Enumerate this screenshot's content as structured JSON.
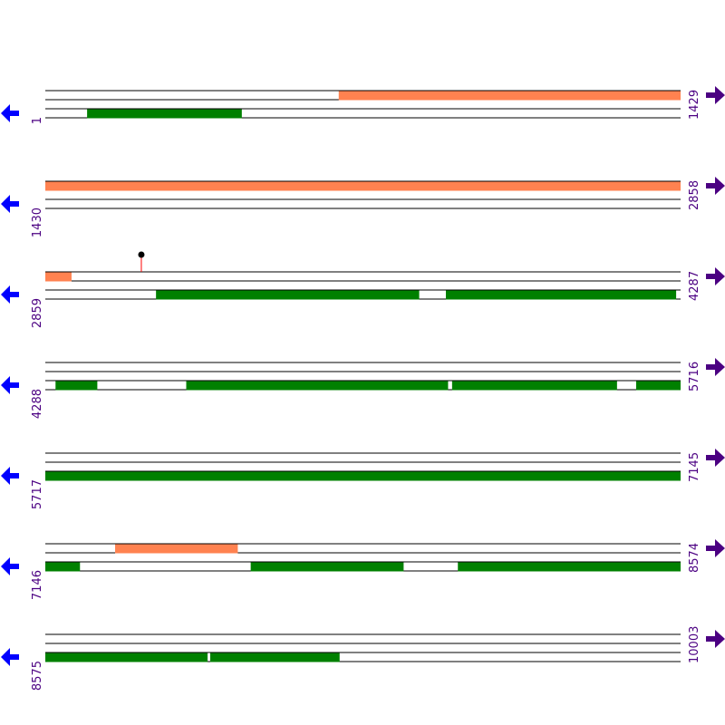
{
  "colors": {
    "forward_feature": "#ff8250",
    "reverse_feature": "#008000",
    "track_line": "#000000",
    "coord_text": "#4b0082",
    "left_arrow": "#0000ff",
    "right_arrow": "#4b0082",
    "marker_stem": "#ff0000",
    "marker_head": "#000000"
  },
  "icons": {
    "left": "arrow-left-icon",
    "right": "arrow-right-icon"
  },
  "rows": [
    {
      "start": "1",
      "end": "1429",
      "start_bp": 1,
      "end_bp": 1429,
      "tracks": 3,
      "features": [
        {
          "track": 0,
          "start": 661,
          "end": 1429,
          "kind": "forward"
        },
        {
          "track": 2,
          "start": 95,
          "end": 442,
          "kind": "reverse"
        }
      ],
      "markers": []
    },
    {
      "start": "1430",
      "end": "2858",
      "start_bp": 1430,
      "end_bp": 2858,
      "tracks": 3,
      "features": [
        {
          "track": 0,
          "start": 1430,
          "end": 2858,
          "kind": "forward"
        }
      ],
      "markers": []
    },
    {
      "start": "2859",
      "end": "4287",
      "start_bp": 2859,
      "end_bp": 4287,
      "tracks": 3,
      "features": [
        {
          "track": 0,
          "start": 2859,
          "end": 2917,
          "kind": "forward"
        },
        {
          "track": 2,
          "start": 3108,
          "end": 3699,
          "kind": "reverse"
        },
        {
          "track": 2,
          "start": 3760,
          "end": 4277,
          "kind": "reverse"
        }
      ],
      "markers": [
        {
          "track": 0,
          "pos": 3075
        }
      ]
    },
    {
      "start": "4288",
      "end": "5716",
      "start_bp": 4288,
      "end_bp": 5716,
      "tracks": 3,
      "features": [
        {
          "track": 2,
          "start": 4311,
          "end": 4404,
          "kind": "reverse"
        },
        {
          "track": 2,
          "start": 4605,
          "end": 5193,
          "kind": "reverse"
        },
        {
          "track": 2,
          "start": 5203,
          "end": 5573,
          "kind": "reverse"
        },
        {
          "track": 2,
          "start": 5617,
          "end": 5716,
          "kind": "reverse"
        }
      ],
      "markers": []
    },
    {
      "start": "5717",
      "end": "7145",
      "start_bp": 5717,
      "end_bp": 7145,
      "tracks": 3,
      "features": [
        {
          "track": 2,
          "start": 5717,
          "end": 7145,
          "kind": "reverse"
        }
      ],
      "markers": []
    },
    {
      "start": "7146",
      "end": "8574",
      "start_bp": 7146,
      "end_bp": 8574,
      "tracks": 3,
      "features": [
        {
          "track": 0,
          "start": 7303,
          "end": 7578,
          "kind": "forward"
        },
        {
          "track": 2,
          "start": 7146,
          "end": 7223,
          "kind": "reverse"
        },
        {
          "track": 2,
          "start": 7608,
          "end": 7951,
          "kind": "reverse"
        },
        {
          "track": 2,
          "start": 8074,
          "end": 8574,
          "kind": "reverse"
        }
      ],
      "markers": []
    },
    {
      "start": "8575",
      "end": "10003",
      "start_bp": 8575,
      "end_bp": 10003,
      "tracks": 3,
      "features": [
        {
          "track": 2,
          "start": 8575,
          "end": 8939,
          "kind": "reverse"
        },
        {
          "track": 2,
          "start": 8946,
          "end": 9236,
          "kind": "reverse"
        }
      ],
      "markers": []
    }
  ]
}
